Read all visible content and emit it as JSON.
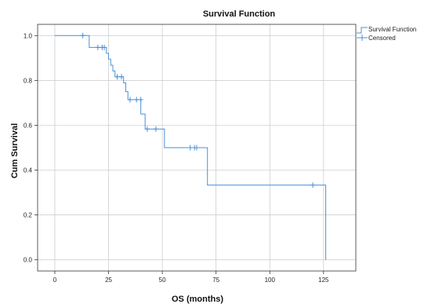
{
  "chart_data": {
    "type": "line",
    "title": "Survival Function",
    "xlabel": "OS (months)",
    "ylabel": "Cum Survival",
    "xlim": [
      -8,
      140
    ],
    "ylim": [
      -0.05,
      1.05
    ],
    "xticks": [
      0,
      25,
      50,
      75,
      100,
      125
    ],
    "xtick_labels": [
      "0",
      "25",
      "50",
      "75",
      "100",
      "125"
    ],
    "yticks": [
      0.0,
      0.2,
      0.4,
      0.6,
      0.8,
      1.0
    ],
    "ytick_labels": [
      "0.0",
      "0.2",
      "0.4",
      "0.6",
      "0.8",
      "1.0"
    ],
    "grid": true,
    "legend_position": "top-right",
    "line_color": "#4a90d9",
    "series": [
      {
        "name": "Survival Function",
        "kind": "step",
        "x": [
          0,
          16,
          24,
          25,
          26,
          27,
          28,
          32,
          33,
          34,
          40,
          42,
          51,
          71,
          126,
          126
        ],
        "y": [
          1.0,
          0.947,
          0.921,
          0.895,
          0.868,
          0.842,
          0.816,
          0.789,
          0.75,
          0.714,
          0.65,
          0.583,
          0.5,
          0.333,
          0.333,
          0.0
        ]
      },
      {
        "name": "Censored",
        "kind": "marks",
        "x": [
          13,
          20,
          22,
          23,
          29,
          31,
          35,
          38,
          40,
          43,
          47,
          63,
          65,
          66,
          120
        ],
        "y": [
          1.0,
          0.947,
          0.947,
          0.947,
          0.816,
          0.816,
          0.714,
          0.714,
          0.714,
          0.583,
          0.583,
          0.5,
          0.5,
          0.5,
          0.333
        ]
      }
    ]
  }
}
